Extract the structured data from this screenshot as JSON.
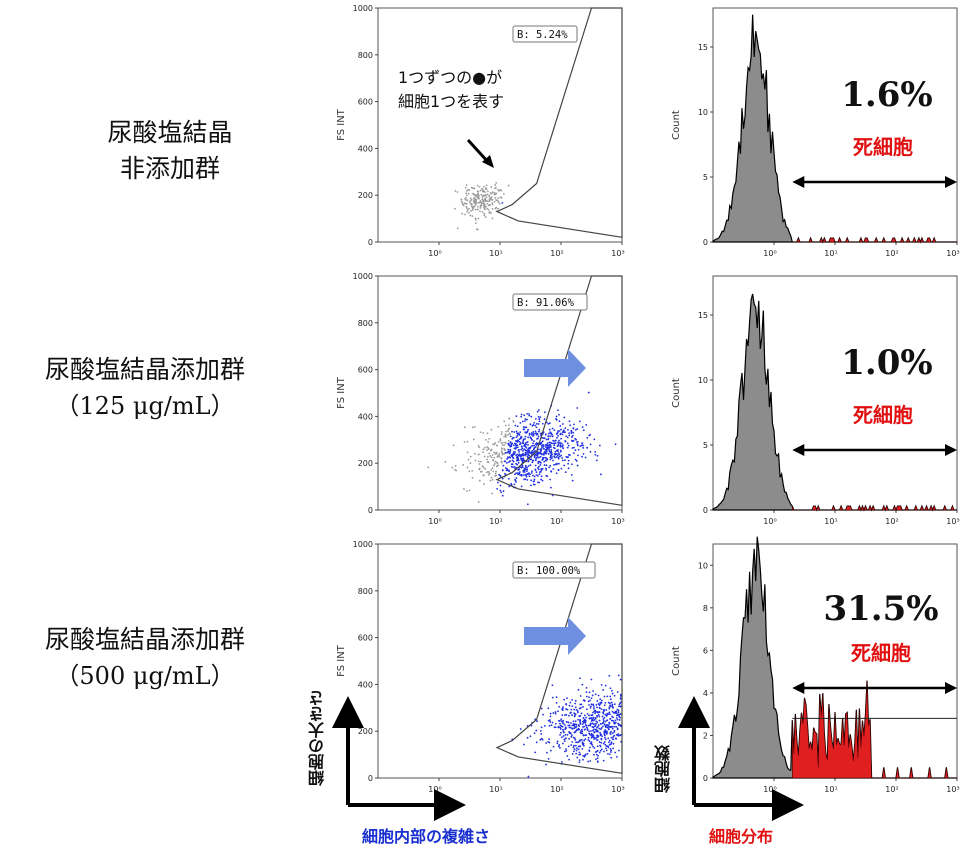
{
  "rows": [
    {
      "label_line1": "尿酸塩結晶",
      "label_line2": "非添加群"
    },
    {
      "label_line1": "尿酸塩結晶添加群",
      "label_line2": "（125 μg/mL）"
    },
    {
      "label_line1": "尿酸塩結晶添加群",
      "label_line2": "（500 μg/mL）"
    }
  ],
  "annotation": {
    "line1": "1つずつの●が",
    "line2": "細胞1つを表す"
  },
  "axis_titles": {
    "scatter_y": "細胞の大きさ",
    "scatter_x": "細胞内部の複雑さ",
    "hist_y": "細胞数",
    "hist_x": "細胞分布"
  },
  "colors": {
    "blue_label": "#1a2fd0",
    "red_label": "#e01010",
    "dots_blue": "#1f2fe0",
    "dots_gray": "#9a9a9a",
    "hist_fill": "#8c8c8c",
    "dead_fill": "#e02020",
    "arrow_blue": "#6f90e0"
  },
  "chart_data": [
    {
      "type": "scatter",
      "ylabel": "FS INT",
      "ylim": [
        0,
        1000
      ],
      "yticks": [
        0,
        200,
        400,
        600,
        800,
        1000
      ],
      "xticks": [
        "10⁰",
        "10¹",
        "10²",
        "10³"
      ],
      "xscale": "log",
      "xlim": [
        0.1,
        1000
      ],
      "gate_label": "B: 5.24%",
      "cluster": {
        "center_x_log": 0.7,
        "center_y": 180,
        "count": 220
      },
      "gated_fraction": 0.0524
    },
    {
      "type": "histogram",
      "ylabel": "Count",
      "yticks": [
        0,
        5,
        10,
        15
      ],
      "ylim": [
        0,
        18
      ],
      "xticks": [
        "10⁰",
        "10¹",
        "10²",
        "10³"
      ],
      "xscale": "log",
      "xlim": [
        0.1,
        1000
      ],
      "peak": 17,
      "percent_text": "1.6%",
      "dead_label": "死細胞",
      "dead_threshold_log": 0.3
    },
    {
      "type": "scatter",
      "ylabel": "FS INT",
      "ylim": [
        0,
        1000
      ],
      "yticks": [
        0,
        200,
        400,
        600,
        800,
        1000
      ],
      "xticks": [
        "10⁰",
        "10¹",
        "10²",
        "10³"
      ],
      "xscale": "log",
      "xlim": [
        0.1,
        1000
      ],
      "gate_label": "B: 91.06%",
      "cluster": {
        "center_x_log": 1.5,
        "center_y": 250,
        "count": 900
      },
      "gated_fraction": 0.9106
    },
    {
      "type": "histogram",
      "ylabel": "Count",
      "yticks": [
        0,
        5,
        10,
        15
      ],
      "ylim": [
        0,
        18
      ],
      "xticks": [
        "10⁰",
        "10¹",
        "10²",
        "10³"
      ],
      "xscale": "log",
      "xlim": [
        0.1,
        1000
      ],
      "peak": 17,
      "percent_text": "1.0%",
      "dead_label": "死細胞",
      "dead_threshold_log": 0.3
    },
    {
      "type": "scatter",
      "ylabel": "FS INT",
      "ylim": [
        0,
        1000
      ],
      "yticks": [
        0,
        200,
        400,
        600,
        800,
        1000
      ],
      "xticks": [
        "10⁰",
        "10¹",
        "10²",
        "10³"
      ],
      "xscale": "log",
      "xlim": [
        0.1,
        1000
      ],
      "gate_label": "B: 100.00%",
      "cluster": {
        "center_x_log": 2.6,
        "center_y": 230,
        "count": 800
      },
      "gated_fraction": 1.0
    },
    {
      "type": "histogram",
      "ylabel": "Count",
      "yticks": [
        0,
        2,
        4,
        6,
        8,
        10
      ],
      "ylim": [
        0,
        11
      ],
      "xticks": [
        "10⁰",
        "10¹",
        "10²",
        "10³"
      ],
      "xscale": "log",
      "xlim": [
        0.1,
        1000
      ],
      "peak": 10.5,
      "percent_text": "31.5%",
      "dead_label": "死細胞",
      "dead_threshold_log": 0.3
    }
  ]
}
